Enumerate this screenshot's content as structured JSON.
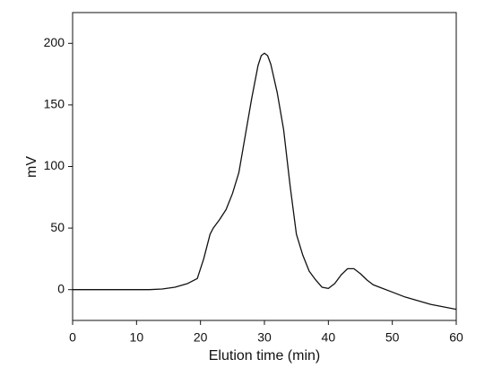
{
  "chart_data": {
    "type": "line",
    "x_label": "Elution time (min)",
    "y_label": "mV",
    "x": [
      0,
      10,
      12,
      14,
      16,
      18,
      19.5,
      20.5,
      21.5,
      22,
      23,
      24,
      25,
      26,
      27,
      28,
      29,
      29.5,
      30,
      30.5,
      31,
      32,
      33,
      34,
      35,
      36,
      37,
      38,
      39,
      40,
      41,
      42,
      43,
      44,
      45,
      46,
      47,
      48,
      50,
      52,
      54,
      56,
      58,
      60
    ],
    "values": [
      0,
      0,
      0,
      0.5,
      2,
      5,
      9,
      25,
      45,
      50,
      57,
      65,
      78,
      95,
      125,
      155,
      182,
      190,
      192,
      190,
      183,
      160,
      130,
      85,
      45,
      28,
      15,
      8,
      2,
      1,
      5,
      12,
      17,
      17,
      13,
      8,
      4,
      2,
      -2,
      -6,
      -9,
      -12,
      -14,
      -16
    ],
    "color": "#111111",
    "xlim": [
      0,
      60
    ],
    "xticks": [
      0,
      10,
      20,
      30,
      40,
      50,
      60
    ],
    "ylim": [
      -25,
      225
    ],
    "yticks": [
      0,
      50,
      100,
      150,
      200
    ]
  }
}
